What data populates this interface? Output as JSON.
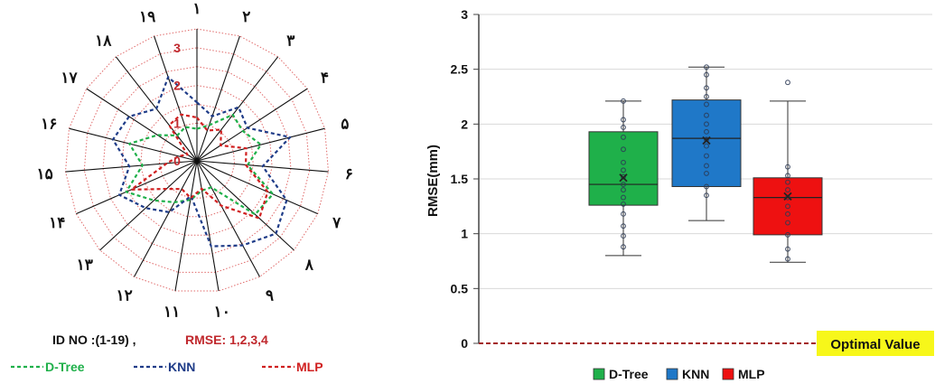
{
  "chart_data": [
    {
      "type": "radar",
      "spokes": [
        "۱",
        "۲",
        "۳",
        "۴",
        "۵",
        "۶",
        "۷",
        "۸",
        "۹",
        "۱۰",
        "۱۱",
        "۱۲",
        "۱۳",
        "۱۴",
        "۱۵",
        "۱۶",
        "۱۷",
        "۱۸",
        "۱۹"
      ],
      "rings": [
        0,
        1,
        2,
        3
      ],
      "rlim": [
        0,
        3.5
      ],
      "series": [
        {
          "name": "D-Tree",
          "color": "#1fb04a",
          "values": [
            0.85,
            1.0,
            1.55,
            1.45,
            1.75,
            1.35,
            2.2,
            2.1,
            0.8,
            0.8,
            1.05,
            1.25,
            1.55,
            2.05,
            1.45,
            1.85,
            1.25,
            0.85,
            0.95
          ]
        },
        {
          "name": "KNN",
          "color": "#1f3c88",
          "values": [
            1.55,
            1.25,
            1.8,
            1.6,
            2.55,
            1.75,
            2.6,
            2.85,
            2.55,
            2.3,
            0.95,
            1.55,
            1.85,
            2.25,
            1.8,
            2.3,
            2.15,
            1.75,
            2.35
          ]
        },
        {
          "name": "MLP",
          "color": "#d02020",
          "values": [
            1.15,
            0.85,
            1.05,
            0.75,
            1.35,
            1.3,
            2.05,
            2.25,
            1.35,
            0.75,
            1.0,
            0.85,
            1.1,
            1.9,
            0.8,
            0.5,
            0.3,
            1.2,
            1.3
          ]
        }
      ],
      "legend_caption_left": "ID NO :(1-19) ,",
      "legend_caption_right": "RMSE: 1,2,3,4"
    },
    {
      "type": "box",
      "ylabel": "RMSE(mm)",
      "ylim": [
        0,
        3
      ],
      "yticks": [
        0,
        0.5,
        1,
        1.5,
        2,
        2.5,
        3
      ],
      "grid": true,
      "legend_position": "bottom",
      "reference_line": {
        "value": 0,
        "label": "Optimal Value"
      },
      "series": [
        {
          "name": "D-Tree",
          "color": "#1fb04a",
          "min": 0.8,
          "q1": 1.26,
          "median": 1.45,
          "q3": 1.93,
          "max": 2.21,
          "mean": 1.51,
          "points": [
            0.88,
            0.98,
            1.07,
            1.18,
            1.27,
            1.33,
            1.4,
            1.45,
            1.52,
            1.58,
            1.65,
            1.77,
            1.88,
            1.97,
            2.04,
            2.21
          ]
        },
        {
          "name": "KNN",
          "color": "#1f78c8",
          "min": 1.12,
          "q1": 1.43,
          "median": 1.87,
          "q3": 2.22,
          "max": 2.52,
          "mean": 1.85,
          "points": [
            1.35,
            1.43,
            1.55,
            1.62,
            1.71,
            1.8,
            1.86,
            1.93,
            2.0,
            2.08,
            2.18,
            2.25,
            2.33,
            2.45,
            2.52
          ]
        },
        {
          "name": "MLP",
          "color": "#ee1111",
          "min": 0.74,
          "q1": 0.99,
          "median": 1.33,
          "q3": 1.51,
          "max": 2.21,
          "mean": 1.34,
          "points": [
            0.77,
            0.86,
            0.99,
            1.1,
            1.18,
            1.25,
            1.33,
            1.4,
            1.47,
            1.53,
            1.61,
            2.38
          ]
        }
      ]
    }
  ]
}
